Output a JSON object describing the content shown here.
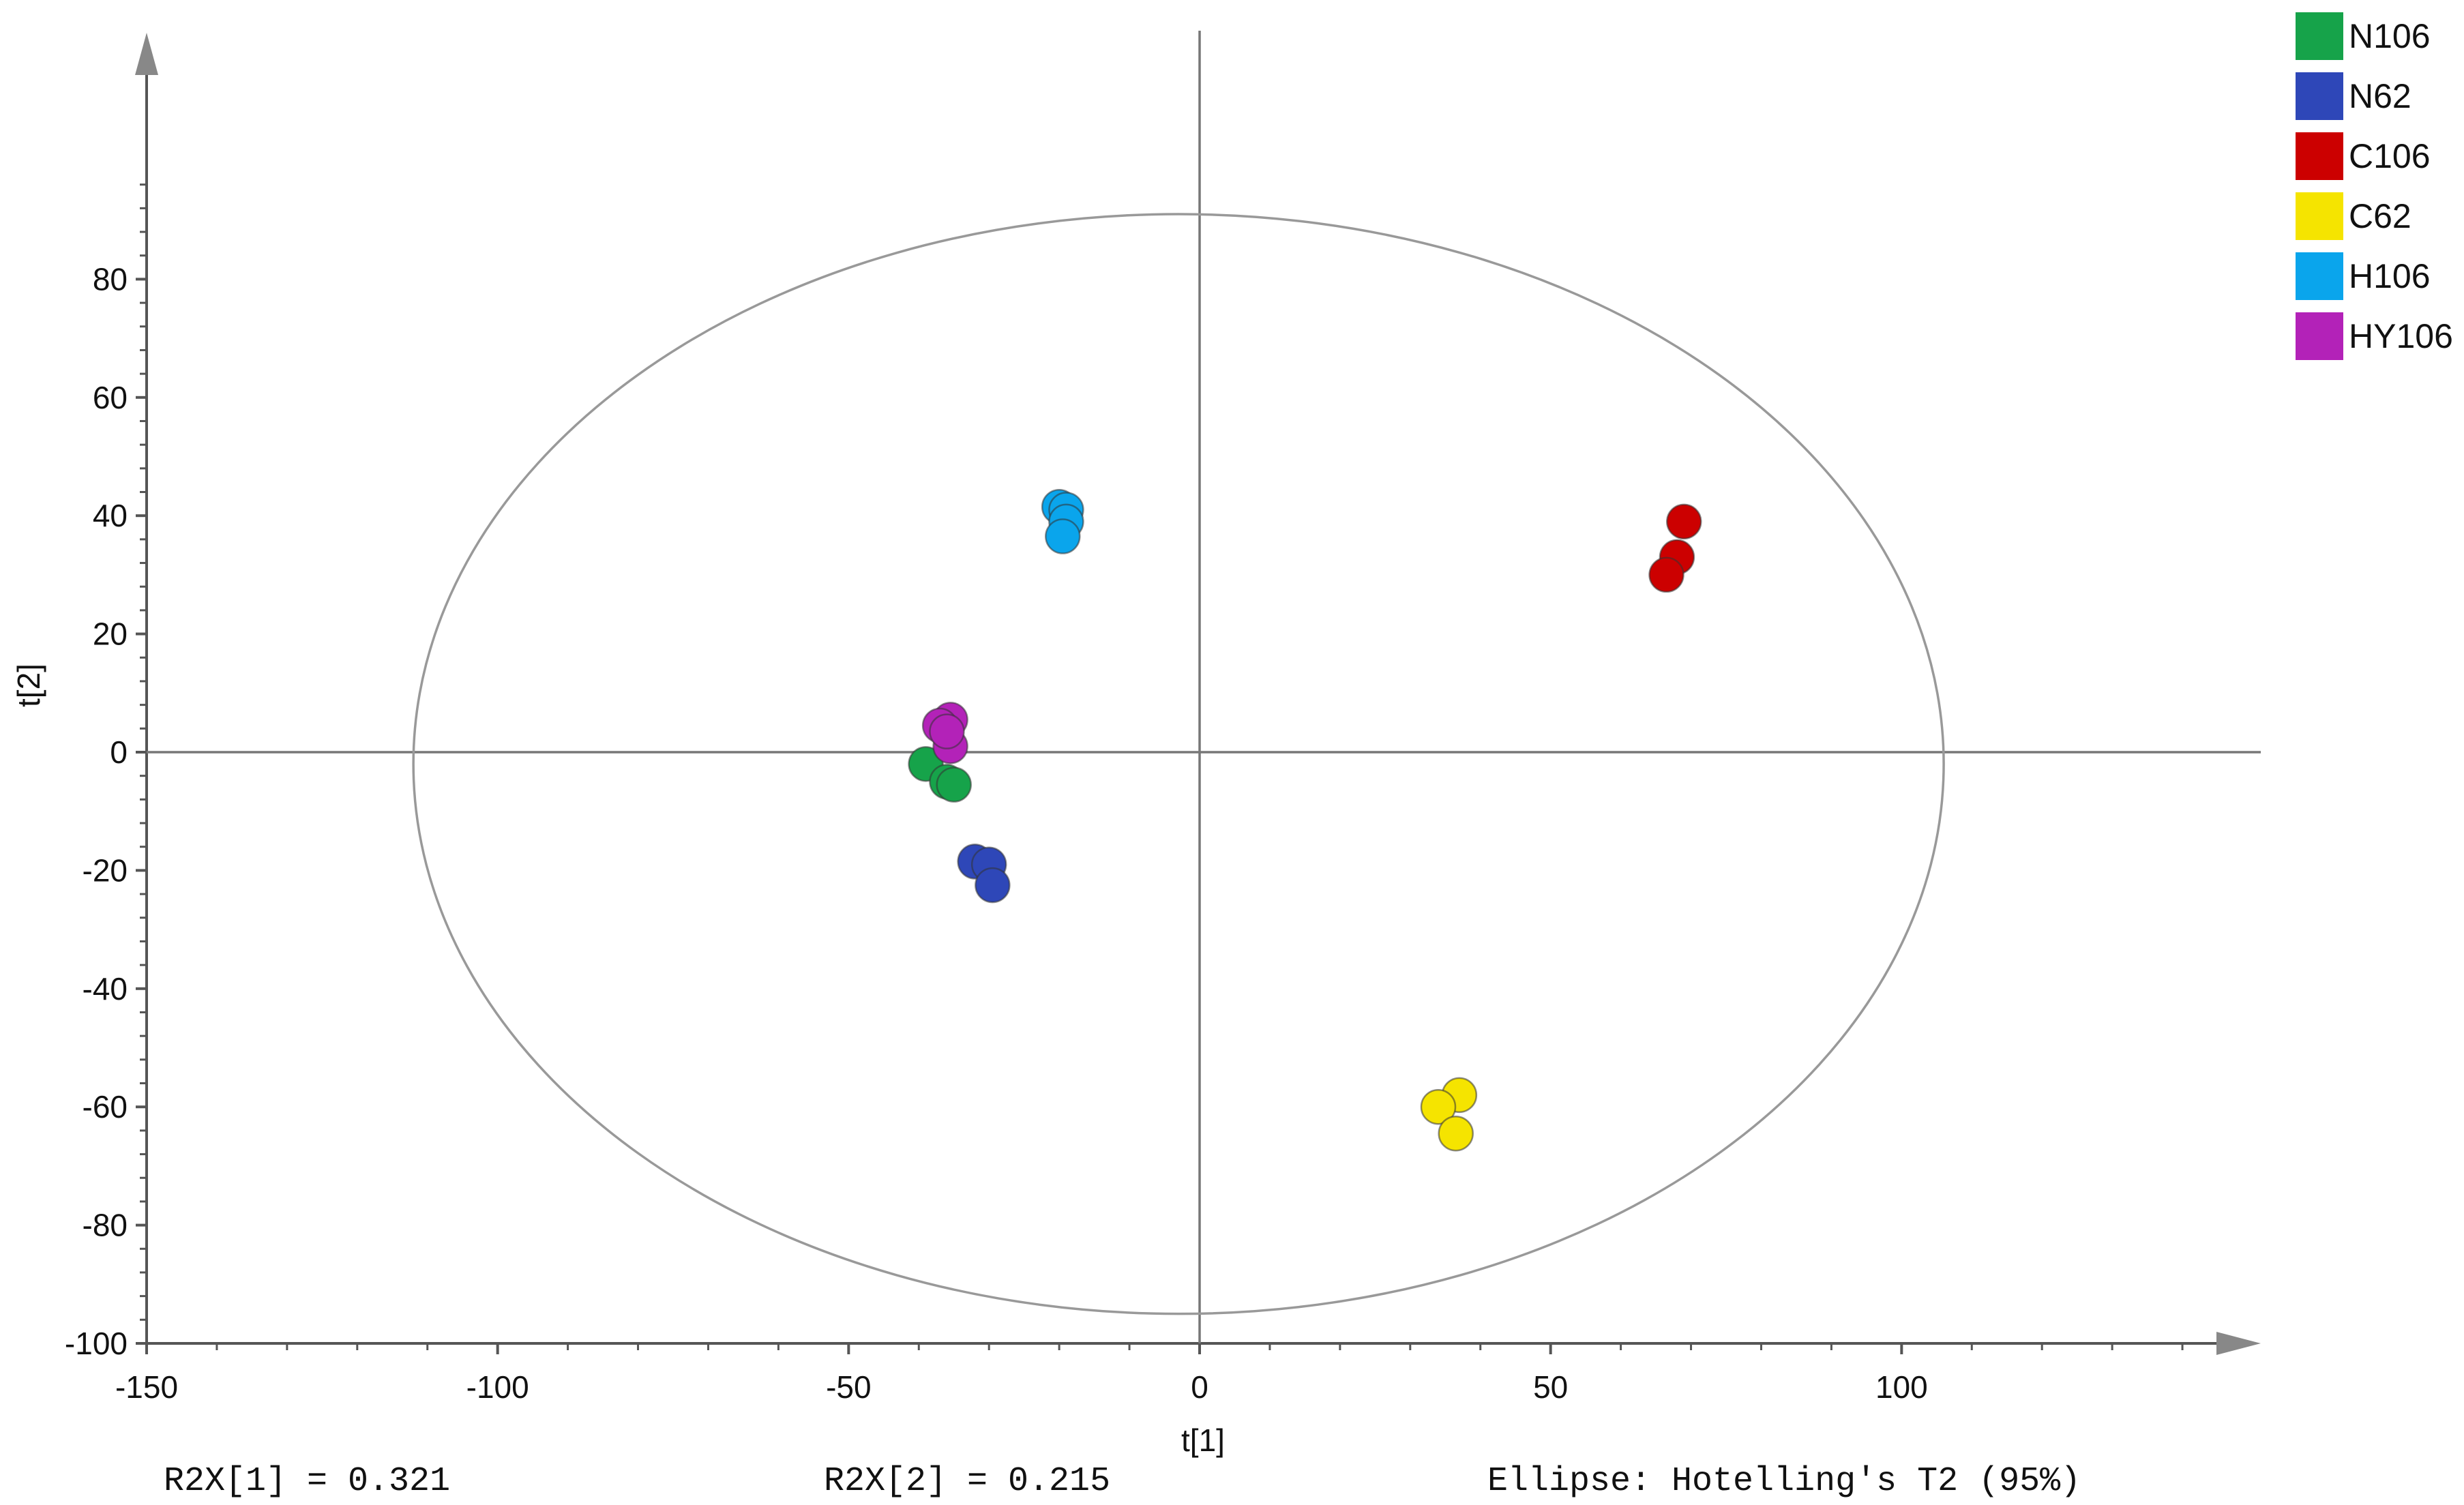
{
  "chart_data": {
    "type": "scatter",
    "xlabel": "t[1]",
    "ylabel": "t[2]",
    "xlim": [
      -150,
      150
    ],
    "ylim": [
      -100,
      100
    ],
    "x_ticks": [
      -150,
      -100,
      -50,
      0,
      50,
      100
    ],
    "y_ticks": [
      80,
      60,
      40,
      20,
      0,
      -20,
      -40,
      -60,
      -80,
      -100
    ],
    "x_tick_labels": [
      "-150",
      "-100",
      "-50",
      "0",
      "50",
      "100"
    ],
    "y_tick_labels": [
      "80",
      "60",
      "40",
      "20",
      "0",
      "-20",
      "-40",
      "-60",
      "-80",
      "-100"
    ],
    "grid": false,
    "legend_position": "top-right",
    "ellipse": {
      "center": [
        -3,
        -2
      ],
      "radius_x": 109,
      "radius_y": 93
    },
    "series": [
      {
        "name": "N106",
        "color": "#16a34a",
        "points": [
          [
            -39,
            -2
          ],
          [
            -36,
            -5
          ],
          [
            -35,
            -5.5
          ]
        ]
      },
      {
        "name": "N62",
        "color": "#2e47b8",
        "points": [
          [
            -32,
            -18.5
          ],
          [
            -30,
            -19
          ],
          [
            -29.5,
            -22.5
          ]
        ]
      },
      {
        "name": "C106",
        "color": "#cc0000",
        "points": [
          [
            69,
            39
          ],
          [
            68,
            33
          ],
          [
            66.5,
            30
          ]
        ]
      },
      {
        "name": "C62",
        "color": "#f5e400",
        "points": [
          [
            37,
            -58
          ],
          [
            34,
            -60
          ],
          [
            36.5,
            -64.5
          ]
        ]
      },
      {
        "name": "H106",
        "color": "#0aa5ec",
        "points": [
          [
            -20,
            41.5
          ],
          [
            -19,
            41
          ],
          [
            -19,
            39
          ],
          [
            -19.5,
            36.5
          ]
        ]
      },
      {
        "name": "HY106",
        "color": "#b322b8",
        "points": [
          [
            -35.5,
            5.5
          ],
          [
            -37,
            4.5
          ],
          [
            -35.5,
            1
          ],
          [
            -36,
            3.5
          ]
        ]
      }
    ]
  },
  "footer": {
    "r2x1": "R2X[1] = 0.321",
    "r2x2": "R2X[2] = 0.215",
    "ellipse_note": "Ellipse: Hotelling's T2 (95%)"
  }
}
